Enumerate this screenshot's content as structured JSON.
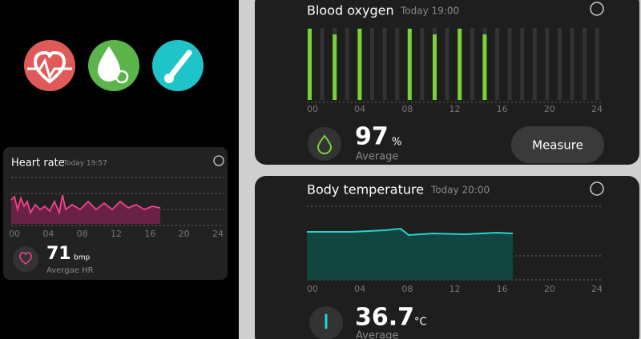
{
  "heart_rate": {
    "title": "Heart rate",
    "time": "Today 19:57",
    "axis": [
      "00",
      "04",
      "08",
      "12",
      "16",
      "20",
      "24"
    ],
    "value": "71",
    "unit": "bmp",
    "caption": "Avergae HR"
  },
  "blood_oxygen": {
    "title": "Blood oxygen",
    "time": "Today 19:00",
    "axis": [
      "00",
      "04",
      "08",
      "12",
      "16",
      "20",
      "24"
    ],
    "value": "97",
    "unit": "%",
    "caption": "Average",
    "button": "Measure"
  },
  "body_temperature": {
    "title": "Body temperature",
    "time": "Today 20:00",
    "axis": [
      "00",
      "04",
      "08",
      "12",
      "16",
      "20",
      "24"
    ],
    "value": "36.7",
    "unit": "°C",
    "caption": "Average"
  }
}
